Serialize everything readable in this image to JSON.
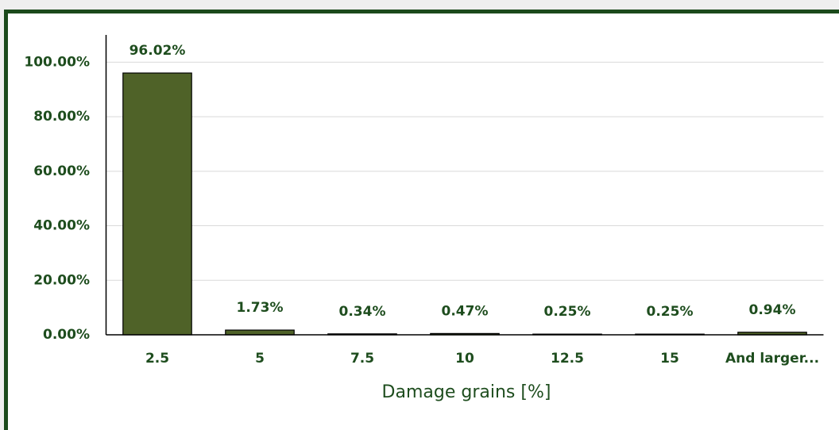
{
  "chart_data": {
    "type": "bar",
    "x_label": "Damage grains [%]",
    "categories": [
      "2.5",
      "5",
      "7.5",
      "10",
      "12.5",
      "15",
      "And larger..."
    ],
    "values": [
      96.02,
      1.73,
      0.34,
      0.47,
      0.25,
      0.25,
      0.94
    ],
    "value_labels": [
      "96.02%",
      "1.73%",
      "0.34%",
      "0.47%",
      "0.25%",
      "0.25%",
      "0.94%"
    ],
    "color": "#4f6228",
    "ylim": [
      0,
      110
    ],
    "yticks": [
      {
        "value": 0,
        "label": "0.00%"
      },
      {
        "value": 20,
        "label": "20.00%"
      },
      {
        "value": 40,
        "label": "40.00%"
      },
      {
        "value": 60,
        "label": "60.00%"
      },
      {
        "value": 80,
        "label": "80.00%"
      },
      {
        "value": 100,
        "label": "100.00%"
      }
    ],
    "grid": true
  }
}
